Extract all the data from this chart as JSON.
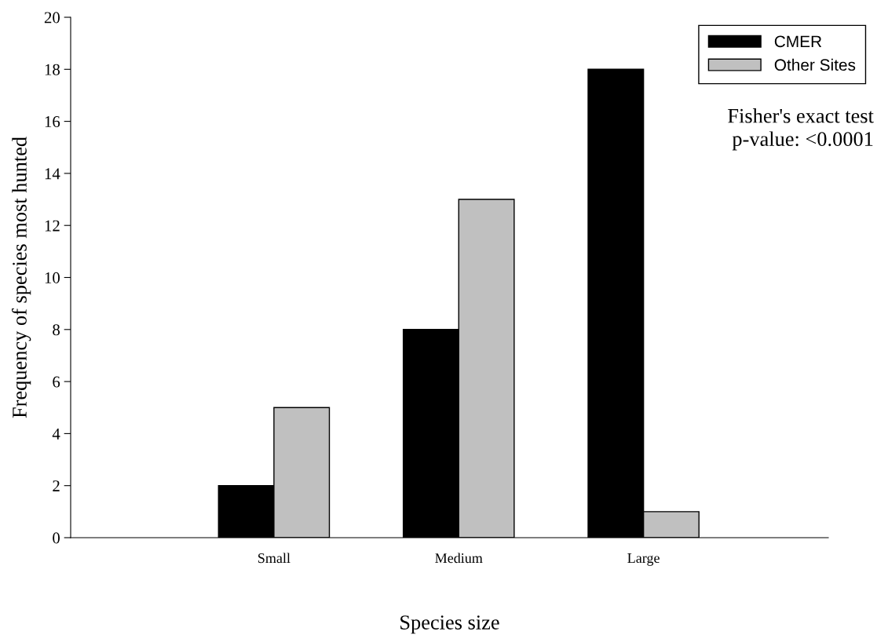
{
  "chart_data": {
    "type": "bar",
    "xlabel": "Species size",
    "ylabel": "Frequency of species most hunted",
    "categories": [
      "Small",
      "Medium",
      "Large"
    ],
    "series": [
      {
        "name": "CMER",
        "color": "#000000",
        "values": [
          2,
          8,
          18
        ]
      },
      {
        "name": "Other Sites",
        "color": "#c0c0c0",
        "values": [
          5,
          13,
          1
        ]
      }
    ],
    "ylim": [
      0,
      20
    ],
    "yticks": [
      0,
      2,
      4,
      6,
      8,
      10,
      12,
      14,
      16,
      18,
      20
    ],
    "grid": false,
    "legend": "top right",
    "annotations": [
      "Fisher's exact test\np-value: <0.0001"
    ]
  }
}
